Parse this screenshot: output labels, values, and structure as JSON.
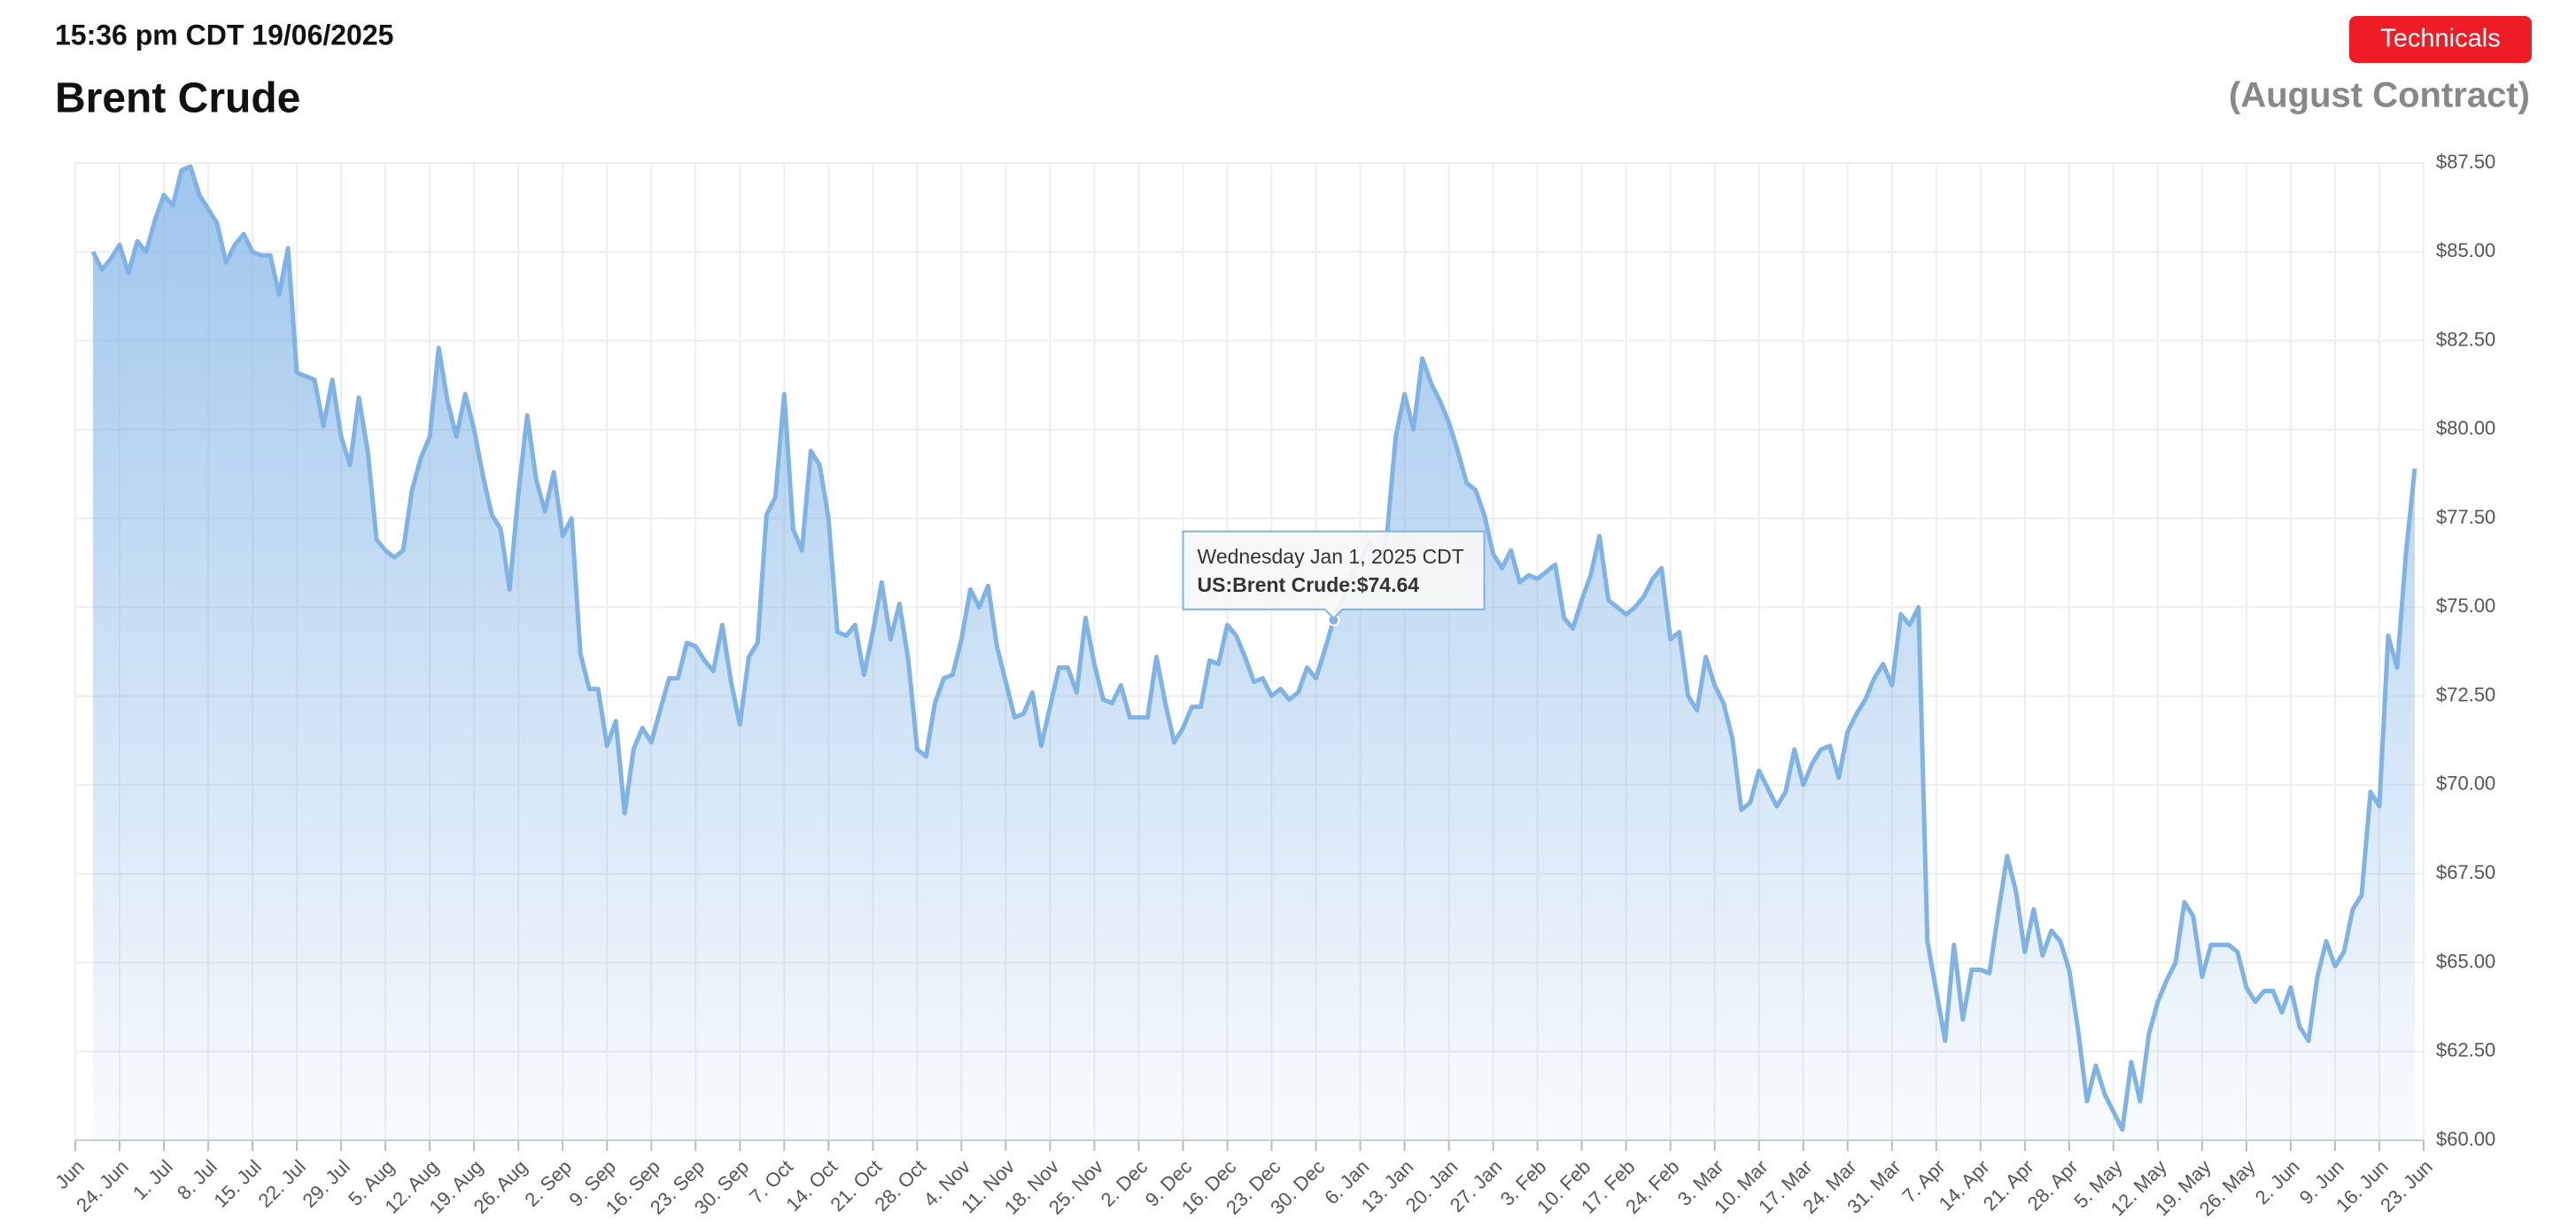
{
  "header": {
    "timestamp": "15:36 pm CDT 19/06/2025",
    "button": "Technicals"
  },
  "chart_data": {
    "type": "line",
    "title": "Brent Crude",
    "subtitle": "(August Contract)",
    "color": "#7fb3e6",
    "grid": true,
    "ylim": [
      60,
      87.5
    ],
    "yticks": [
      {
        "value": 60,
        "label": "$60.00"
      },
      {
        "value": 62.5,
        "label": "$62.50"
      },
      {
        "value": 65,
        "label": "$65.00"
      },
      {
        "value": 67.5,
        "label": "$67.50"
      },
      {
        "value": 70,
        "label": "$70.00"
      },
      {
        "value": 72.5,
        "label": "$72.50"
      },
      {
        "value": 75,
        "label": "$75.00"
      },
      {
        "value": 77.5,
        "label": "$77.50"
      },
      {
        "value": 80,
        "label": "$80.00"
      },
      {
        "value": 82.5,
        "label": "$82.50"
      },
      {
        "value": 85,
        "label": "$85.00"
      },
      {
        "value": 87.5,
        "label": "$87.50"
      }
    ],
    "categories": [
      "Jun",
      null,
      null,
      null,
      null,
      "24. Jun",
      null,
      null,
      null,
      null,
      "1. Jul",
      null,
      null,
      null,
      null,
      "8. Jul",
      null,
      null,
      null,
      null,
      "15. Jul",
      null,
      null,
      null,
      null,
      "22. Jul",
      null,
      null,
      null,
      null,
      "29. Jul",
      null,
      null,
      null,
      null,
      "5. Aug",
      null,
      null,
      null,
      null,
      "12. Aug",
      null,
      null,
      null,
      null,
      "19. Aug",
      null,
      null,
      null,
      null,
      "26. Aug",
      null,
      null,
      null,
      null,
      "2. Sep",
      null,
      null,
      null,
      null,
      "9. Sep",
      null,
      null,
      null,
      null,
      "16. Sep",
      null,
      null,
      null,
      null,
      "23. Sep",
      null,
      null,
      null,
      null,
      "30. Sep",
      null,
      null,
      null,
      null,
      "7. Oct",
      null,
      null,
      null,
      null,
      "14. Oct",
      null,
      null,
      null,
      null,
      "21. Oct",
      null,
      null,
      null,
      null,
      "28. Oct",
      null,
      null,
      null,
      null,
      "4. Nov",
      null,
      null,
      null,
      null,
      "11. Nov",
      null,
      null,
      null,
      null,
      "18. Nov",
      null,
      null,
      null,
      null,
      "25. Nov",
      null,
      null,
      null,
      null,
      "2. Dec",
      null,
      null,
      null,
      null,
      "9. Dec",
      null,
      null,
      null,
      null,
      "16. Dec",
      null,
      null,
      null,
      null,
      "23. Dec",
      null,
      null,
      null,
      null,
      "30. Dec",
      null,
      null,
      null,
      null,
      "6. Jan",
      null,
      null,
      null,
      null,
      "13. Jan",
      null,
      null,
      null,
      null,
      "20. Jan",
      null,
      null,
      null,
      null,
      "27. Jan",
      null,
      null,
      null,
      null,
      "3. Feb",
      null,
      null,
      null,
      null,
      "10. Feb",
      null,
      null,
      null,
      null,
      "17. Feb",
      null,
      null,
      null,
      null,
      "24. Feb",
      null,
      null,
      null,
      null,
      "3. Mar",
      null,
      null,
      null,
      null,
      "10. Mar",
      null,
      null,
      null,
      null,
      "17. Mar",
      null,
      null,
      null,
      null,
      "24. Mar",
      null,
      null,
      null,
      null,
      "31. Mar",
      null,
      null,
      null,
      null,
      "7. Apr",
      null,
      null,
      null,
      null,
      "14. Apr",
      null,
      null,
      null,
      null,
      "21. Apr",
      null,
      null,
      null,
      null,
      "28. Apr",
      null,
      null,
      null,
      null,
      "5. May",
      null,
      null,
      null,
      null,
      "12. May",
      null,
      null,
      null,
      null,
      "19. May",
      null,
      null,
      null,
      null,
      "26. May",
      null,
      null,
      null,
      null,
      "2. Jun",
      null,
      null,
      null,
      null,
      "9. Jun",
      null,
      null,
      null,
      null,
      "16. Jun",
      null,
      null,
      null,
      null,
      "23. Jun"
    ],
    "values": [
      null,
      null,
      85.0,
      84.5,
      84.8,
      85.2,
      84.4,
      85.3,
      85.0,
      85.9,
      86.6,
      86.3,
      87.3,
      87.4,
      86.6,
      86.2,
      85.8,
      84.7,
      85.2,
      85.5,
      85.0,
      84.9,
      84.9,
      83.8,
      85.1,
      81.6,
      81.5,
      81.4,
      80.1,
      81.4,
      79.8,
      79.0,
      80.9,
      79.4,
      76.9,
      76.6,
      76.4,
      76.6,
      78.3,
      79.2,
      79.8,
      82.3,
      80.8,
      79.8,
      81.0,
      80.0,
      78.7,
      77.6,
      77.2,
      75.5,
      78.2,
      80.4,
      78.6,
      77.7,
      78.8,
      77.0,
      77.5,
      73.7,
      72.7,
      72.7,
      71.1,
      71.8,
      69.2,
      71.0,
      71.6,
      71.2,
      72.1,
      73.0,
      73.0,
      74.0,
      73.9,
      73.5,
      73.2,
      74.5,
      72.9,
      71.7,
      73.6,
      74.0,
      77.6,
      78.1,
      81.0,
      77.2,
      76.6,
      79.4,
      79.0,
      77.5,
      74.3,
      74.2,
      74.5,
      73.1,
      74.3,
      75.7,
      74.1,
      75.1,
      73.5,
      71.0,
      70.8,
      72.3,
      73.0,
      73.1,
      74.1,
      75.5,
      75.0,
      75.6,
      73.9,
      72.9,
      71.9,
      72.0,
      72.6,
      71.1,
      72.2,
      73.3,
      73.3,
      72.6,
      74.7,
      73.4,
      72.4,
      72.3,
      72.8,
      71.9,
      71.9,
      71.9,
      73.6,
      72.3,
      71.2,
      71.6,
      72.2,
      72.2,
      73.5,
      73.4,
      74.5,
      74.2,
      73.6,
      72.9,
      73.0,
      72.5,
      72.7,
      72.4,
      72.6,
      73.3,
      73.0,
      73.8,
      74.64,
      75.2,
      75.9,
      76.3,
      76.8,
      76.2,
      77.0,
      79.8,
      81.0,
      80.0,
      82.0,
      81.3,
      80.8,
      80.2,
      79.4,
      78.5,
      78.3,
      77.6,
      76.5,
      76.1,
      76.6,
      75.7,
      75.9,
      75.8,
      76.0,
      76.2,
      74.7,
      74.4,
      75.2,
      75.9,
      77.0,
      75.2,
      75.0,
      74.8,
      75.0,
      75.3,
      75.8,
      76.1,
      74.1,
      74.3,
      72.5,
      72.1,
      73.6,
      72.8,
      72.3,
      71.3,
      69.3,
      69.5,
      70.4,
      69.9,
      69.4,
      69.8,
      71.0,
      70.0,
      70.6,
      71.0,
      71.1,
      70.2,
      71.5,
      72.0,
      72.4,
      73.0,
      73.4,
      72.8,
      74.8,
      74.5,
      75.0,
      65.6,
      64.2,
      62.8,
      65.5,
      63.4,
      64.8,
      64.8,
      64.7,
      66.4,
      68.0,
      67.0,
      65.3,
      66.5,
      65.2,
      65.9,
      65.6,
      64.8,
      63.1,
      61.1,
      62.1,
      61.3,
      60.8,
      60.3,
      62.2,
      61.1,
      63.0,
      63.9,
      64.5,
      65.0,
      66.7,
      66.3,
      64.6,
      65.5,
      65.5,
      65.5,
      65.3,
      64.3,
      63.9,
      64.2,
      64.2,
      63.6,
      64.3,
      63.2,
      62.8,
      64.6,
      65.6,
      64.9,
      65.3,
      66.5,
      66.9,
      69.8,
      69.4,
      74.2,
      73.3,
      76.5,
      78.9,
      null
    ],
    "tooltip": {
      "index": 142,
      "title": "Wednesday Jan 1, 2025 CDT",
      "label": "US:Brent Crude:$74.64"
    }
  }
}
